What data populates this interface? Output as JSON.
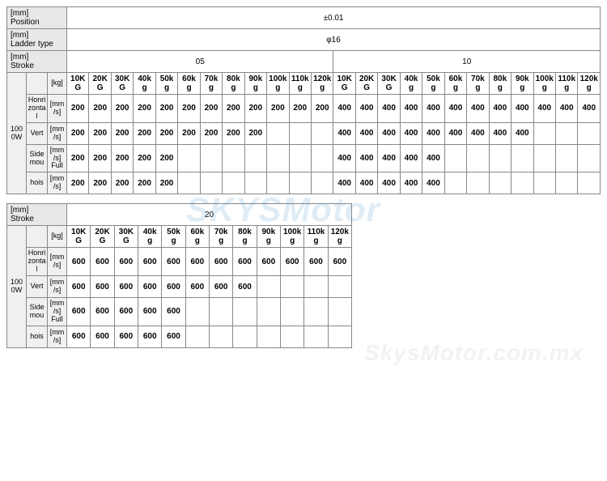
{
  "header_rows": {
    "position": {
      "label_top": "[mm]",
      "label_bot": "Position",
      "value": "±0.01"
    },
    "ladder": {
      "label_top": "[mm]",
      "label_bot": "Ladder type",
      "value": "φ16"
    },
    "stroke1": {
      "label_top": "[mm]",
      "label_bot": "Stroke",
      "v1": "05",
      "v2": "10"
    },
    "stroke2": {
      "label_top": "[mm]",
      "label_bot": "Stroke",
      "v1": "20"
    }
  },
  "power_label": "1000W",
  "weight_unit": "[kg]",
  "speed_unit_lines": [
    "[mm",
    "/s]"
  ],
  "speed_full_lines": [
    "[mm",
    "/s]",
    "Full"
  ],
  "dirs": [
    "Honrizontal",
    "Vert",
    "Side mou",
    "hois"
  ],
  "weights": [
    "10KG",
    "20KG",
    "30KG",
    "40kg",
    "50kg",
    "60kg",
    "70kg",
    "80kg",
    "90kg",
    "100kg",
    "110kg",
    "120kg"
  ],
  "block05": {
    "horiz": [
      "200",
      "200",
      "200",
      "200",
      "200",
      "200",
      "200",
      "200",
      "200",
      "200",
      "200",
      "200"
    ],
    "vert": [
      "200",
      "200",
      "200",
      "200",
      "200",
      "200",
      "200",
      "200",
      "200",
      "",
      "",
      ""
    ],
    "side": [
      "200",
      "200",
      "200",
      "200",
      "200",
      "",
      "",
      "",
      "",
      "",
      "",
      ""
    ],
    "hois": [
      "200",
      "200",
      "200",
      "200",
      "200",
      "",
      "",
      "",
      "",
      "",
      "",
      ""
    ]
  },
  "block10": {
    "horiz": [
      "400",
      "400",
      "400",
      "400",
      "400",
      "400",
      "400",
      "400",
      "400",
      "400",
      "400",
      "400"
    ],
    "vert": [
      "400",
      "400",
      "400",
      "400",
      "400",
      "400",
      "400",
      "400",
      "400",
      "",
      "",
      ""
    ],
    "side": [
      "400",
      "400",
      "400",
      "400",
      "400",
      "",
      "",
      "",
      "",
      "",
      "",
      ""
    ],
    "hois": [
      "400",
      "400",
      "400",
      "400",
      "400",
      "",
      "",
      "",
      "",
      "",
      "",
      ""
    ]
  },
  "block20": {
    "horiz": [
      "600",
      "600",
      "600",
      "600",
      "600",
      "600",
      "600",
      "600",
      "600",
      "600",
      "600",
      "600"
    ],
    "vert": [
      "600",
      "600",
      "600",
      "600",
      "600",
      "600",
      "600",
      "600",
      "",
      "",
      "",
      ""
    ],
    "side": [
      "600",
      "600",
      "600",
      "600",
      "600",
      "",
      "",
      "",
      "",
      "",
      "",
      ""
    ],
    "hois": [
      "600",
      "600",
      "600",
      "600",
      "600",
      "",
      "",
      "",
      "",
      "",
      "",
      ""
    ]
  },
  "watermark1": "SKYSMotor",
  "watermark2": "SkysMotor.com.mx",
  "colors": {
    "border": "#888888",
    "hdr_bg": "#e8e8e8",
    "bg": "#ffffff"
  },
  "typography": {
    "base_font_pt": 10,
    "header_font_pt": 10,
    "cell_font_pt": 10
  }
}
